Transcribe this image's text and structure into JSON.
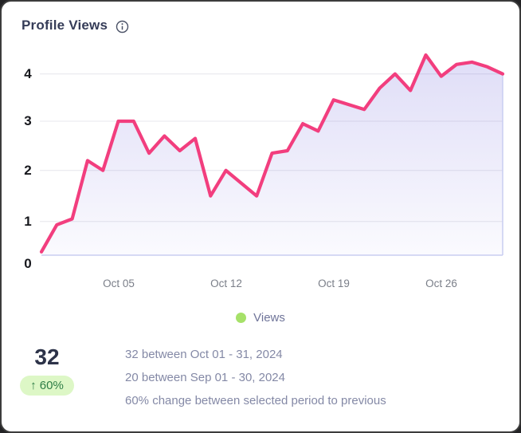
{
  "card": {
    "title": "Profile Views"
  },
  "chart_data": {
    "type": "area",
    "title": "Profile Views",
    "series_name": "Views",
    "values": [
      0.1,
      0.9,
      1.05,
      2.2,
      2.0,
      3.0,
      3.0,
      2.35,
      2.7,
      2.4,
      2.65,
      1.5,
      2.0,
      1.75,
      1.5,
      2.35,
      2.4,
      2.95,
      2.8,
      3.45,
      3.35,
      3.25,
      3.7,
      4.0,
      3.65,
      4.4,
      3.95,
      4.2,
      4.25,
      4.15,
      4.0
    ],
    "x_ticks": [
      {
        "label": "Oct 05",
        "index": 5
      },
      {
        "label": "Oct 12",
        "index": 12
      },
      {
        "label": "Oct 19",
        "index": 19
      },
      {
        "label": "Oct 26",
        "index": 26
      }
    ],
    "y_ticks": [
      0,
      1,
      2,
      3,
      4
    ],
    "ylim": [
      0,
      4.4
    ],
    "grid": true,
    "legend_position": "bottom-center",
    "colors": {
      "line": "#F23E7E",
      "fill_top": "#DEDCF5",
      "baseline": "#C9CDF1",
      "gridline": "#ECECF0",
      "legend_dot": "#A6E169"
    }
  },
  "legend": {
    "label": "Views"
  },
  "summary": {
    "current_total": "32",
    "change_label": "↑ 60%",
    "badge_bg": "#DDF7C6",
    "badge_color": "#2E7D46",
    "lines": [
      "32 between Oct 01 - 31, 2024",
      "20 between Sep 01 - 30, 2024",
      "60% change between selected period to previous"
    ]
  }
}
